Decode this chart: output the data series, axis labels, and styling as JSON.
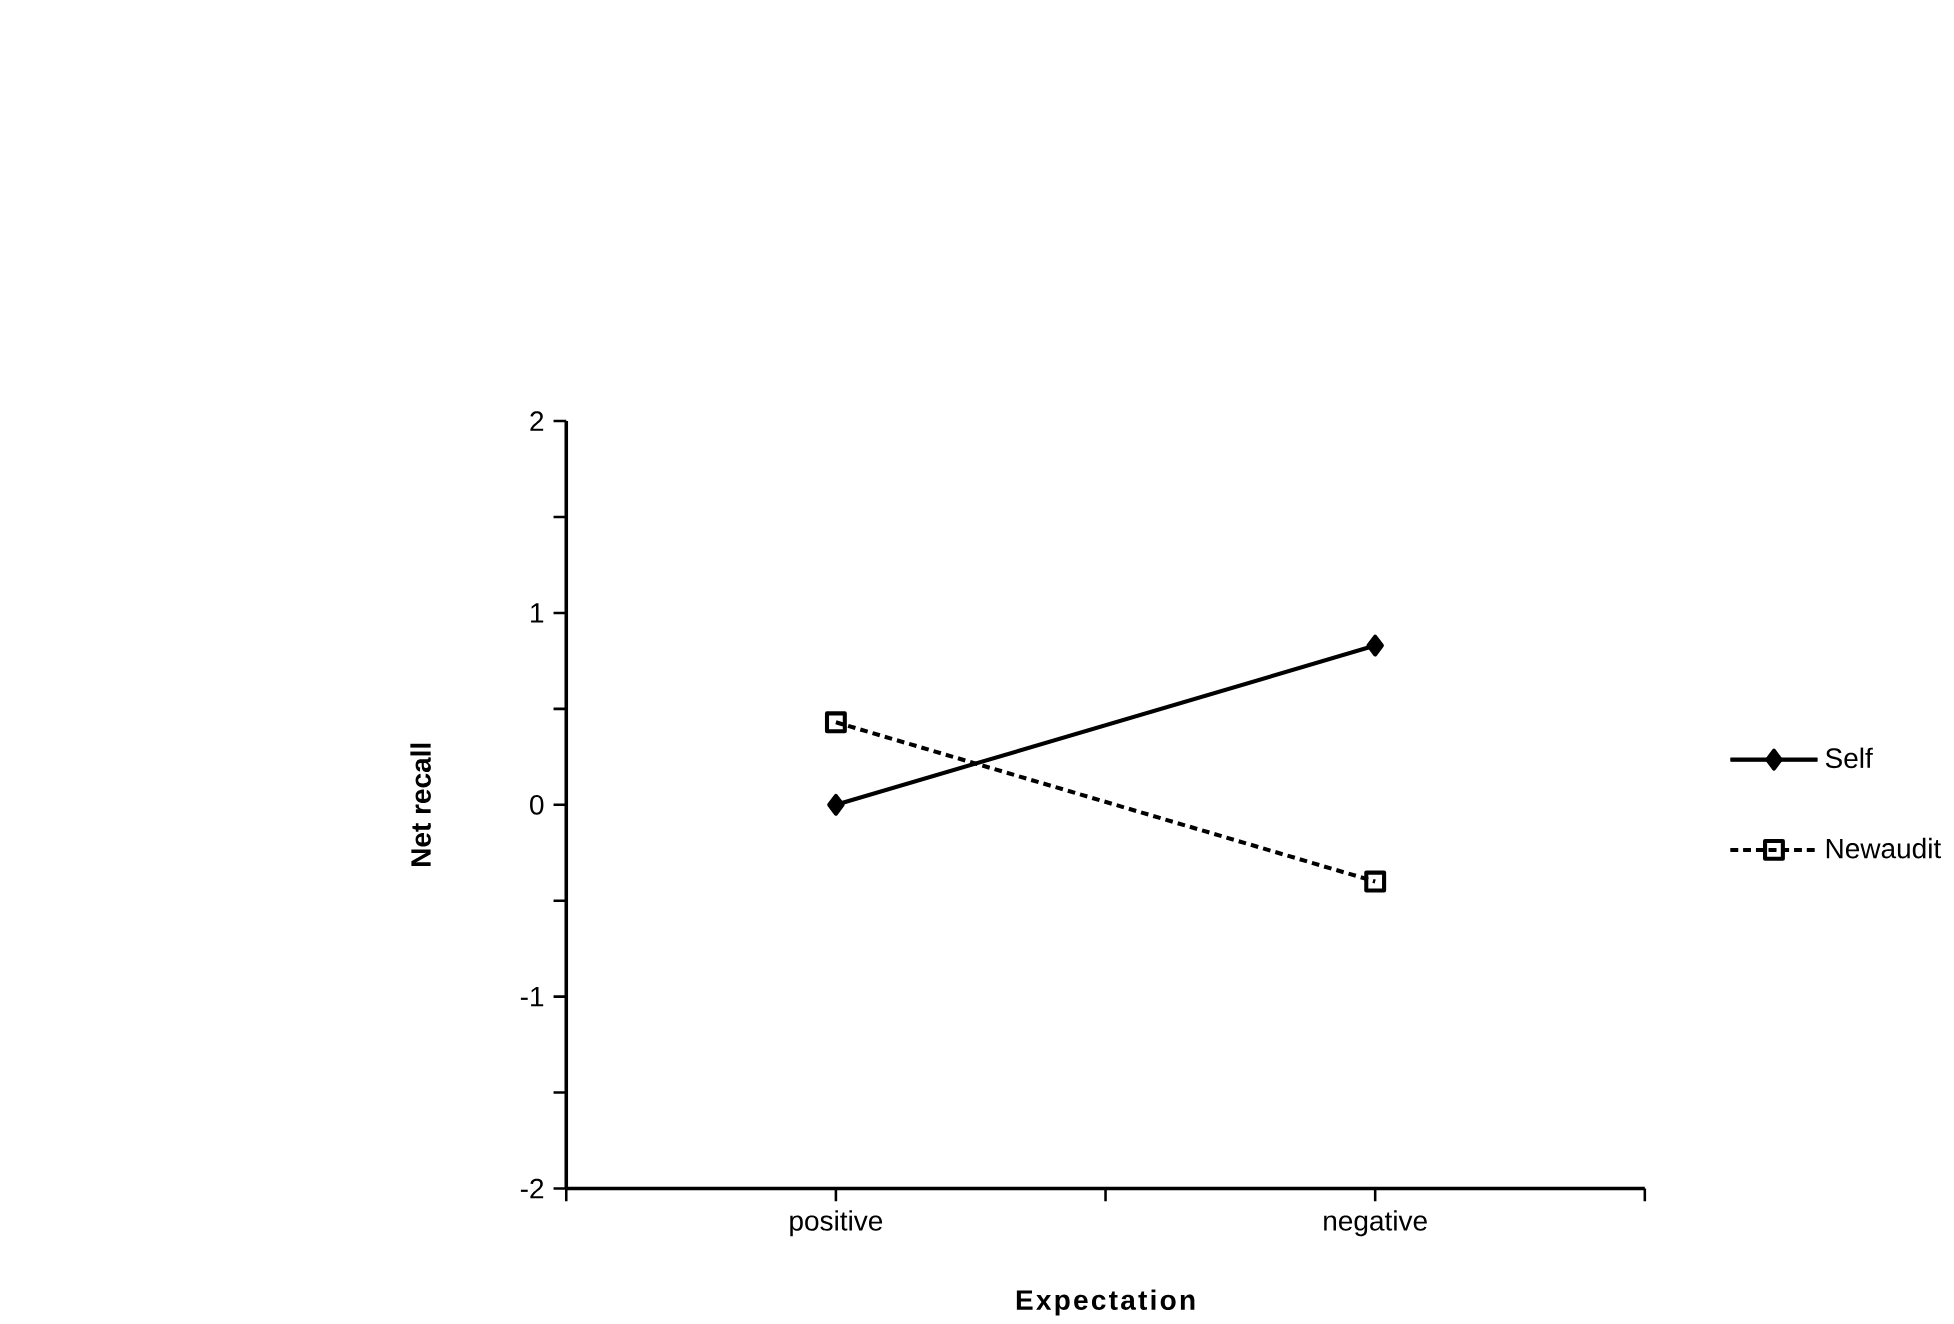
{
  "chart_data": {
    "type": "line",
    "xlabel": "Expectation",
    "ylabel": "Net   recall",
    "categories": [
      "positive",
      "negative"
    ],
    "series": [
      {
        "name": "Self",
        "color": "#000000",
        "values": [
          0,
          0.83
        ],
        "marker": "diamond",
        "line_style": "solid"
      },
      {
        "name": "Newaudit",
        "color": "#000000",
        "values": [
          0.43,
          -0.4
        ],
        "marker": "square",
        "line_style": "dashed"
      }
    ],
    "ylim": [
      -2,
      2
    ],
    "yticks": [
      -2,
      {
        "value": -1.5,
        "label": null
      },
      -1,
      {
        "value": -0.5,
        "label": null
      },
      0,
      {
        "value": 0.5,
        "label": null
      },
      1,
      {
        "value": 1.5,
        "label": null
      },
      2
    ],
    "legend": "right",
    "grid": false
  }
}
